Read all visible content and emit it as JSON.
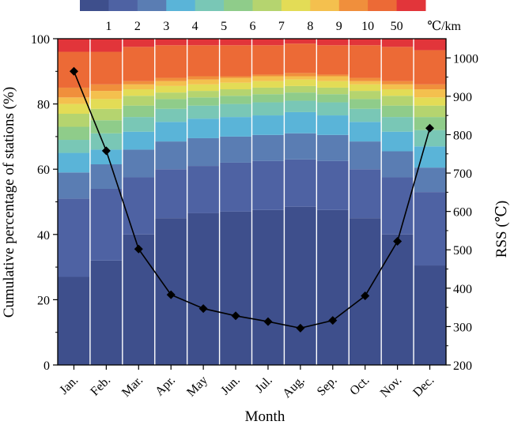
{
  "chart_data": {
    "type": "bar",
    "subtype": "stacked-100-percent-with-line",
    "xlabel": "Month",
    "ylabel": "Cumulative percentage of stations (%)",
    "y2label": "RSS (℃)",
    "ylim": [
      0,
      100
    ],
    "y2lim": [
      200,
      1050
    ],
    "yticks": [
      0,
      20,
      40,
      60,
      80,
      100
    ],
    "y2ticks": [
      200,
      300,
      400,
      500,
      600,
      700,
      800,
      900,
      1000
    ],
    "categories": [
      "Jan.",
      "Feb.",
      "Mar.",
      "Apr.",
      "May",
      "Jun.",
      "Jul.",
      "Aug.",
      "Sep.",
      "Oct.",
      "Nov.",
      "Dec."
    ],
    "legend_unit": "℃/km",
    "legend_placement": "top",
    "legend_colors": [
      "#3e4f8c",
      "#4e62a3",
      "#5a7db3",
      "#5ab4d8",
      "#79c7b6",
      "#8fcc8a",
      "#b5d46f",
      "#e3dc56",
      "#f4c04e",
      "#f08f3c",
      "#ec6a36",
      "#e2353a"
    ],
    "legend_tick_labels": [
      "1",
      "2",
      "3",
      "4",
      "5",
      "6",
      "7",
      "8",
      "9",
      "10",
      "50"
    ],
    "bin_upper_bounds": [
      1,
      2,
      3,
      4,
      5,
      6,
      7,
      8,
      9,
      10,
      50,
      100
    ],
    "cumulative_percent": [
      [
        27,
        51,
        59,
        65,
        69,
        73,
        77,
        80,
        82,
        85,
        96,
        100
      ],
      [
        32,
        54,
        61.5,
        66,
        71,
        75,
        78.5,
        81.5,
        84,
        86,
        96,
        100
      ],
      [
        40,
        57.5,
        66,
        71.5,
        76,
        79.5,
        82.5,
        84.5,
        86,
        87,
        97.5,
        100
      ],
      [
        45,
        60,
        68.5,
        74.5,
        78.5,
        81.5,
        83.5,
        85.5,
        87,
        88,
        98,
        100
      ],
      [
        46.5,
        61,
        69.5,
        75.5,
        79.5,
        82,
        84,
        86,
        87.5,
        88.5,
        98,
        100
      ],
      [
        47,
        62,
        70,
        76,
        80,
        82.5,
        84.5,
        86.5,
        88,
        88.5,
        98,
        100
      ],
      [
        47.5,
        62.5,
        70.5,
        76.5,
        80.5,
        83,
        85,
        87,
        88.5,
        89,
        98,
        100
      ],
      [
        48.5,
        63,
        71,
        77.5,
        81,
        83.5,
        85.5,
        87.5,
        88.5,
        89.5,
        98.5,
        100
      ],
      [
        47.5,
        62.5,
        70.5,
        76.5,
        80.5,
        83,
        85,
        87,
        88.5,
        89,
        98,
        100
      ],
      [
        45,
        60,
        68.5,
        74.5,
        78.5,
        81.5,
        84,
        86,
        87,
        88,
        98,
        100
      ],
      [
        40,
        57.5,
        65.5,
        71.5,
        76,
        79.5,
        82.5,
        84.5,
        86,
        87,
        97.5,
        100
      ],
      [
        30.5,
        53,
        60.5,
        67,
        72,
        76,
        79.5,
        82,
        84.5,
        86,
        96.5,
        100
      ]
    ],
    "series": [
      {
        "name": "RSS",
        "type": "line",
        "axis": "right",
        "marker": "diamond",
        "values": [
          965,
          758,
          502,
          383,
          347,
          328,
          313,
          296,
          316,
          380,
          522,
          817
        ]
      }
    ],
    "grid": false
  }
}
